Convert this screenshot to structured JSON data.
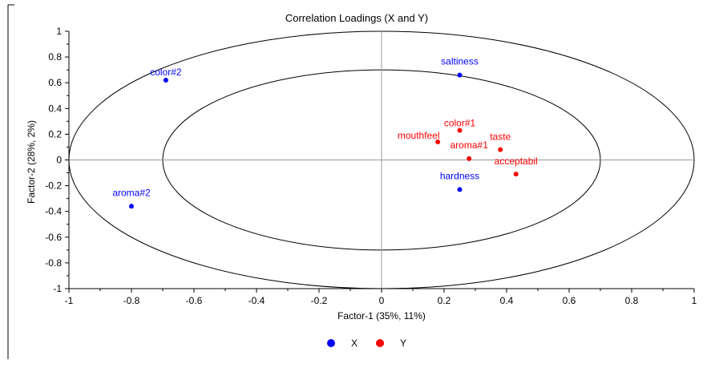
{
  "chart_data": {
    "type": "scatter",
    "title": "Correlation Loadings (X and Y)",
    "xlabel": "Factor-1 (35%, 11%)",
    "ylabel": "Factor-2 (28%, 2%)",
    "xlim": [
      -1,
      1
    ],
    "ylim": [
      -1,
      1
    ],
    "x_ticks": [
      "-1",
      "-0.8",
      "-0.6",
      "-0.4",
      "-0.2",
      "0",
      "0.2",
      "0.4",
      "0.6",
      "0.8",
      "1"
    ],
    "y_ticks": [
      "1",
      "0.8",
      "0.6",
      "0.4",
      "0.2",
      "0",
      "-0.2",
      "-0.4",
      "-0.6",
      "-0.8",
      "-1"
    ],
    "x_tick_values": [
      -1,
      -0.8,
      -0.6,
      -0.4,
      -0.2,
      0,
      0.2,
      0.4,
      0.6,
      0.8,
      1
    ],
    "y_tick_values": [
      1,
      0.8,
      0.6,
      0.4,
      0.2,
      0,
      -0.2,
      -0.4,
      -0.6,
      -0.8,
      -1
    ],
    "circles": [
      1.0,
      0.7
    ],
    "zero_lines": true,
    "grid": false,
    "legend_position": "bottom",
    "series": [
      {
        "name": "X",
        "color": "#0000ff",
        "points": [
          {
            "label": "color#2",
            "x": -0.69,
            "y": 0.62
          },
          {
            "label": "saltiness",
            "x": 0.25,
            "y": 0.66
          },
          {
            "label": "hardness",
            "x": 0.25,
            "y": -0.23
          },
          {
            "label": "aroma#2",
            "x": -0.8,
            "y": -0.36
          }
        ]
      },
      {
        "name": "Y",
        "color": "#ff0000",
        "points": [
          {
            "label": "color#1",
            "x": 0.25,
            "y": 0.23
          },
          {
            "label": "mouthfeel",
            "x": 0.18,
            "y": 0.14
          },
          {
            "label": "aroma#1",
            "x": 0.28,
            "y": 0.01
          },
          {
            "label": "taste",
            "x": 0.38,
            "y": 0.08
          },
          {
            "label": "acceptabil",
            "x": 0.43,
            "y": -0.11
          }
        ]
      }
    ]
  }
}
